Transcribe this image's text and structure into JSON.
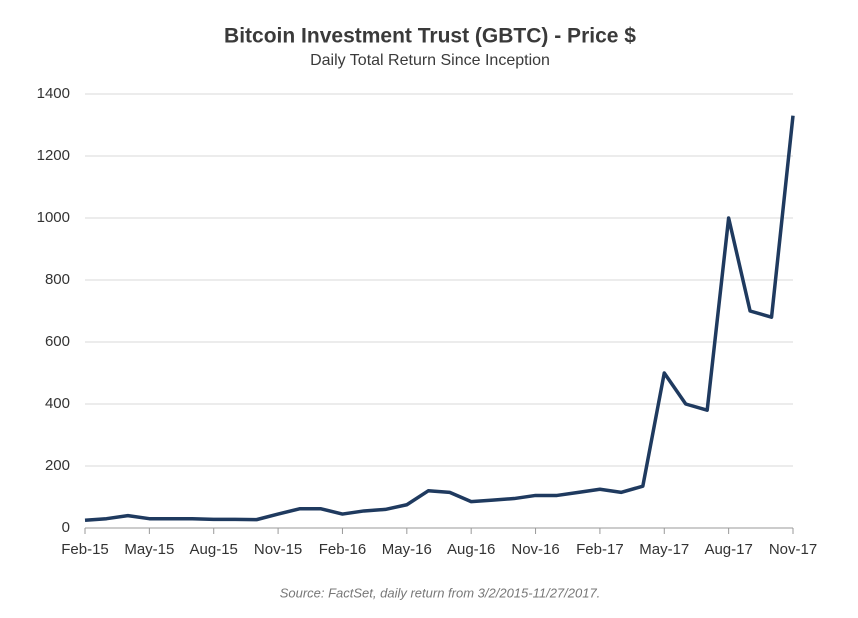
{
  "chart_data": {
    "type": "line",
    "title": "Bitcoin Investment Trust (GBTC) - Price $",
    "subtitle": "Daily Total Return Since Inception",
    "source": "Source: FactSet, daily return from 3/2/2015-11/27/2017.",
    "x": [
      "Feb-15",
      "Mar-15",
      "Apr-15",
      "May-15",
      "Jun-15",
      "Jul-15",
      "Aug-15",
      "Sep-15",
      "Oct-15",
      "Nov-15",
      "Dec-15",
      "Jan-16",
      "Feb-16",
      "Mar-16",
      "Apr-16",
      "May-16",
      "Jun-16",
      "Jul-16",
      "Aug-16",
      "Sep-16",
      "Oct-16",
      "Nov-16",
      "Dec-16",
      "Jan-17",
      "Feb-17",
      "Mar-17",
      "Apr-17",
      "May-17",
      "Jun-17",
      "Jul-17",
      "Aug-17",
      "Sep-17",
      "Oct-17",
      "Nov-17"
    ],
    "series": [
      {
        "name": "GBTC",
        "color": "#1f3a5f",
        "values": [
          25,
          30,
          40,
          30,
          30,
          30,
          28,
          28,
          27,
          45,
          62,
          62,
          45,
          55,
          60,
          75,
          120,
          115,
          85,
          90,
          95,
          105,
          105,
          115,
          125,
          115,
          135,
          500,
          400,
          380,
          1000,
          700,
          680,
          1330
        ]
      }
    ],
    "xticks": [
      "Feb-15",
      "May-15",
      "Aug-15",
      "Nov-15",
      "Feb-16",
      "May-16",
      "Aug-16",
      "Nov-16",
      "Feb-17",
      "May-17",
      "Aug-17",
      "Nov-17"
    ],
    "ylim": [
      0,
      1400
    ],
    "yticks": [
      0,
      200,
      400,
      600,
      800,
      1000,
      1200,
      1400
    ],
    "grid": true
  }
}
